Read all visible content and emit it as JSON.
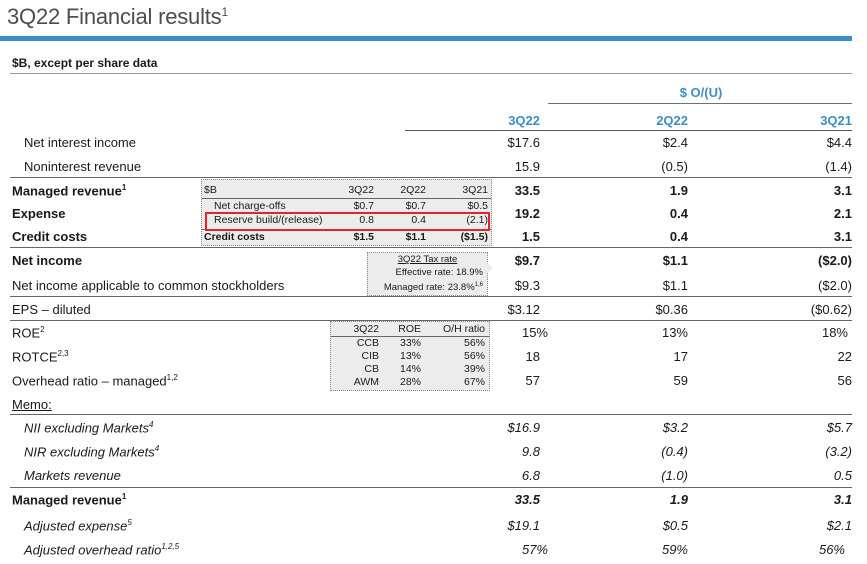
{
  "title": "3Q22 Financial results",
  "title_sup": "1",
  "subtitle": "$B, except per share data",
  "ou_header": "$ O/(U)",
  "columns": [
    "3Q22",
    "2Q22",
    "3Q21"
  ],
  "rows": {
    "nii": {
      "label": "Net interest income",
      "v": [
        "$17.6",
        "$2.4",
        "$4.4"
      ]
    },
    "nir": {
      "label": "Noninterest revenue",
      "v": [
        "15.9",
        "(0.5)",
        "(1.4)"
      ]
    },
    "managed_rev": {
      "label": "Managed revenue",
      "sup": "1",
      "v": [
        "33.5",
        "1.9",
        "3.1"
      ]
    },
    "expense": {
      "label": "Expense",
      "v": [
        "19.2",
        "0.4",
        "2.1"
      ]
    },
    "credit": {
      "label": "Credit costs",
      "v": [
        "1.5",
        "0.4",
        "3.1"
      ]
    },
    "net_income": {
      "label": "Net income",
      "v": [
        "$9.7",
        "$1.1",
        "($2.0)"
      ]
    },
    "ni_common": {
      "label": "Net income applicable to common stockholders",
      "v": [
        "$9.3",
        "$1.1",
        "($2.0)"
      ]
    },
    "eps": {
      "label": "EPS – diluted",
      "v": [
        "$3.12",
        "$0.36",
        "($0.62)"
      ]
    },
    "roe": {
      "label": "ROE",
      "sup": "2",
      "v": [
        "15%",
        "13%",
        "18%"
      ]
    },
    "rotce": {
      "label": "ROTCE",
      "sup": "2,3",
      "v": [
        "18",
        "17",
        "22"
      ]
    },
    "overhead": {
      "label": "Overhead ratio – managed",
      "sup": "1,2",
      "v": [
        "57",
        "59",
        "56"
      ]
    },
    "memo": {
      "label": "Memo:"
    },
    "nii_ex": {
      "label": "NII excluding Markets",
      "sup": "4",
      "v": [
        "$16.9",
        "$3.2",
        "$5.7"
      ]
    },
    "nir_ex": {
      "label": "NIR excluding Markets",
      "sup": "4",
      "v": [
        "9.8",
        "(0.4)",
        "(3.2)"
      ]
    },
    "markets": {
      "label": "Markets revenue",
      "v": [
        "6.8",
        "(1.0)",
        "0.5"
      ]
    },
    "managed_rev2": {
      "label": "Managed revenue",
      "sup": "1",
      "v": [
        "33.5",
        "1.9",
        "3.1"
      ]
    },
    "adj_exp": {
      "label": "Adjusted expense",
      "sup": "5",
      "v": [
        "$19.1",
        "$0.5",
        "$2.1"
      ]
    },
    "adj_ohr": {
      "label": "Adjusted overhead ratio",
      "sup": "1,2,5",
      "v": [
        "57%",
        "59%",
        "56%"
      ]
    }
  },
  "credit_box": {
    "headers": [
      "$B",
      "3Q22",
      "2Q22",
      "3Q21"
    ],
    "rows": [
      {
        "label": "Net charge-offs",
        "v": [
          "$0.7",
          "$0.7",
          "$0.5"
        ]
      },
      {
        "label": "Reserve build/(release)",
        "v": [
          "0.8",
          "0.4",
          "(2.1)"
        ]
      },
      {
        "label": "Credit costs",
        "v": [
          "$1.5",
          "$1.1",
          "($1.5)"
        ]
      }
    ]
  },
  "tax_box": {
    "title": "3Q22 Tax rate",
    "line1": "Effective rate: 18.9%",
    "line2": "Managed rate: 23.8%",
    "line2_sup": "1,6"
  },
  "roe_box": {
    "headers": [
      "3Q22",
      "ROE",
      "O/H ratio"
    ],
    "rows": [
      {
        "seg": "CCB",
        "roe": "33%",
        "oh": "56%"
      },
      {
        "seg": "CIB",
        "roe": "13%",
        "oh": "56%"
      },
      {
        "seg": "CB",
        "roe": "14%",
        "oh": "39%"
      },
      {
        "seg": "AWM",
        "roe": "28%",
        "oh": "67%"
      }
    ]
  },
  "colors": {
    "accent": "#3d8ec6",
    "highlight": "#e0262c"
  }
}
